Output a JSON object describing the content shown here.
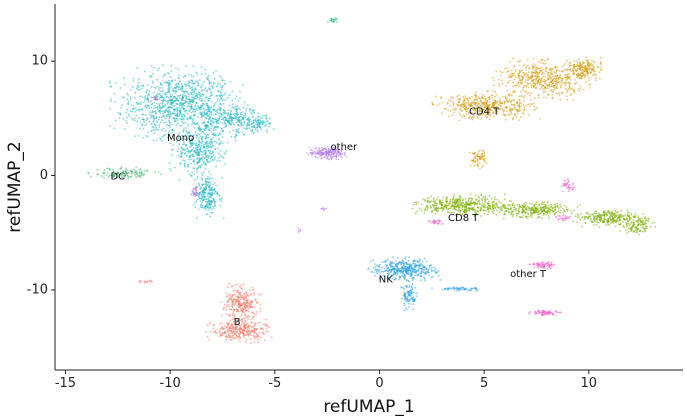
{
  "chart_data": {
    "type": "scatter",
    "xlabel": "refUMAP_1",
    "ylabel": "refUMAP_2",
    "xlim": [
      -15.5,
      14.5
    ],
    "ylim": [
      -17,
      15
    ],
    "xticks": [
      -15,
      -10,
      -5,
      0,
      5,
      10
    ],
    "yticks": [
      -10,
      0,
      10
    ],
    "xtick_labels": [
      "-15",
      "-10",
      "-5",
      "0",
      "5",
      "10"
    ],
    "ytick_labels": [
      "-10",
      "0",
      "10"
    ],
    "grid": false,
    "legend": "none",
    "clusters": [
      {
        "label": "Mono",
        "color": "#20B8C0",
        "label_pos": [
          -9.5,
          3.3
        ],
        "regions": [
          {
            "cx": -9.6,
            "cy": 6.2,
            "rx": 3.0,
            "ry": 3.2,
            "n": 1000
          },
          {
            "cx": -7.0,
            "cy": 4.8,
            "rx": 1.8,
            "ry": 1.3,
            "n": 300
          },
          {
            "cx": -8.6,
            "cy": 2.0,
            "rx": 1.3,
            "ry": 2.2,
            "n": 350
          },
          {
            "cx": -8.2,
            "cy": -1.8,
            "rx": 0.7,
            "ry": 2.0,
            "n": 220
          },
          {
            "cx": -5.8,
            "cy": 4.5,
            "rx": 0.8,
            "ry": 0.8,
            "n": 60
          }
        ]
      },
      {
        "label": "DC",
        "color": "#3CB371",
        "label_pos": [
          -12.5,
          -0.1
        ],
        "regions": [
          {
            "cx": -12.2,
            "cy": 0.2,
            "rx": 1.6,
            "ry": 0.5,
            "n": 120
          }
        ]
      },
      {
        "label": "other",
        "color": "#B57BEA",
        "label_pos": [
          -1.7,
          2.5
        ],
        "regions": [
          {
            "cx": -2.5,
            "cy": 2.0,
            "rx": 0.9,
            "ry": 0.6,
            "n": 200
          },
          {
            "cx": -8.8,
            "cy": -1.5,
            "rx": 0.2,
            "ry": 0.6,
            "n": 30
          },
          {
            "cx": -10.8,
            "cy": 6.7,
            "rx": 0.2,
            "ry": 0.3,
            "n": 15
          },
          {
            "cx": -2.7,
            "cy": -2.9,
            "rx": 0.2,
            "ry": 0.15,
            "n": 8
          },
          {
            "cx": -3.8,
            "cy": -4.8,
            "rx": 0.2,
            "ry": 0.2,
            "n": 6
          }
        ]
      },
      {
        "label": "CD4 T",
        "color": "#D49A10",
        "label_pos": [
          5.0,
          5.6
        ],
        "regions": [
          {
            "cx": 5.1,
            "cy": 6.1,
            "rx": 2.4,
            "ry": 1.2,
            "n": 450
          },
          {
            "cx": 7.8,
            "cy": 8.4,
            "rx": 2.2,
            "ry": 1.7,
            "n": 500
          },
          {
            "cx": 9.8,
            "cy": 9.3,
            "rx": 0.9,
            "ry": 1.0,
            "n": 180
          },
          {
            "cx": 4.7,
            "cy": 1.5,
            "rx": 0.4,
            "ry": 0.8,
            "n": 70
          }
        ]
      },
      {
        "label": "CD8 T",
        "color": "#7CAE00",
        "label_pos": [
          4.0,
          -3.7
        ],
        "regions": [
          {
            "cx": 4.0,
            "cy": -2.6,
            "rx": 2.3,
            "ry": 0.9,
            "n": 450
          },
          {
            "cx": 7.4,
            "cy": -3.0,
            "rx": 2.0,
            "ry": 0.7,
            "n": 300
          },
          {
            "cx": 11.0,
            "cy": -3.7,
            "rx": 1.8,
            "ry": 0.8,
            "n": 260
          },
          {
            "cx": 12.3,
            "cy": -4.3,
            "rx": 0.8,
            "ry": 0.9,
            "n": 120
          }
        ]
      },
      {
        "label": "NK",
        "color": "#2BA3E6",
        "label_pos": [
          0.3,
          -9.1
        ],
        "regions": [
          {
            "cx": 1.2,
            "cy": -8.2,
            "rx": 1.6,
            "ry": 1.0,
            "n": 420
          },
          {
            "cx": 1.4,
            "cy": -10.5,
            "rx": 0.4,
            "ry": 1.2,
            "n": 100
          },
          {
            "cx": 3.8,
            "cy": -9.9,
            "rx": 1.2,
            "ry": 0.2,
            "n": 60
          }
        ]
      },
      {
        "label": "other T",
        "color": "#F064C8",
        "label_pos": [
          7.1,
          -8.6
        ],
        "regions": [
          {
            "cx": 7.8,
            "cy": -7.8,
            "rx": 0.6,
            "ry": 0.35,
            "n": 80
          },
          {
            "cx": 8.0,
            "cy": -12.0,
            "rx": 0.8,
            "ry": 0.25,
            "n": 80
          },
          {
            "cx": 9.0,
            "cy": -0.9,
            "rx": 0.3,
            "ry": 0.6,
            "n": 40
          },
          {
            "cx": 2.7,
            "cy": -4.1,
            "rx": 0.4,
            "ry": 0.3,
            "n": 30
          },
          {
            "cx": 8.8,
            "cy": -3.7,
            "rx": 0.4,
            "ry": 0.3,
            "n": 25
          }
        ]
      },
      {
        "label": "B",
        "color": "#F07A6A",
        "label_pos": [
          -6.8,
          -12.8
        ],
        "regions": [
          {
            "cx": -6.6,
            "cy": -11.2,
            "rx": 0.9,
            "ry": 1.6,
            "n": 280
          },
          {
            "cx": -6.7,
            "cy": -13.6,
            "rx": 1.5,
            "ry": 1.0,
            "n": 300
          },
          {
            "cx": -11.2,
            "cy": -9.3,
            "rx": 0.4,
            "ry": 0.15,
            "n": 15
          }
        ]
      },
      {
        "label": "",
        "color": "#2DB37A",
        "label_pos": null,
        "regions": [
          {
            "cx": -2.2,
            "cy": 13.6,
            "rx": 0.3,
            "ry": 0.2,
            "n": 20
          }
        ]
      }
    ]
  }
}
